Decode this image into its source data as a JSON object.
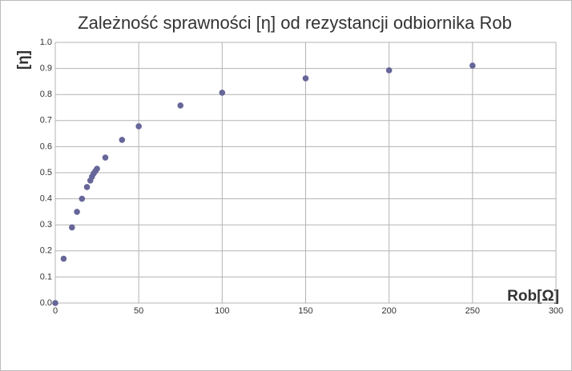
{
  "chart_data": {
    "type": "scatter",
    "title": "Zależność sprawności [η] od rezystancji odbiornika Rob",
    "y_label": "[η]",
    "x_label": "Rob[Ω]",
    "x": [
      0,
      5,
      10,
      13,
      16,
      19,
      21,
      22,
      23,
      24,
      25,
      30,
      40,
      50,
      75,
      100,
      150,
      200,
      250
    ],
    "values": [
      0,
      0.17,
      0.29,
      0.35,
      0.4,
      0.445,
      0.47,
      0.485,
      0.497,
      0.506,
      0.515,
      0.558,
      0.626,
      0.678,
      0.758,
      0.807,
      0.862,
      0.893,
      0.911
    ],
    "color": "#666699",
    "xlim": [
      0,
      300
    ],
    "xticks": [
      0,
      50,
      100,
      150,
      200,
      250,
      300
    ],
    "ylim": [
      0,
      1
    ],
    "yticks": [
      {
        "value": 0,
        "label": "0.0"
      },
      0.1,
      0.2,
      0.3,
      0.4,
      0.5,
      0.6,
      0.7,
      0.8,
      0.9,
      {
        "value": 1,
        "label": "1.0"
      }
    ],
    "grid": true
  }
}
